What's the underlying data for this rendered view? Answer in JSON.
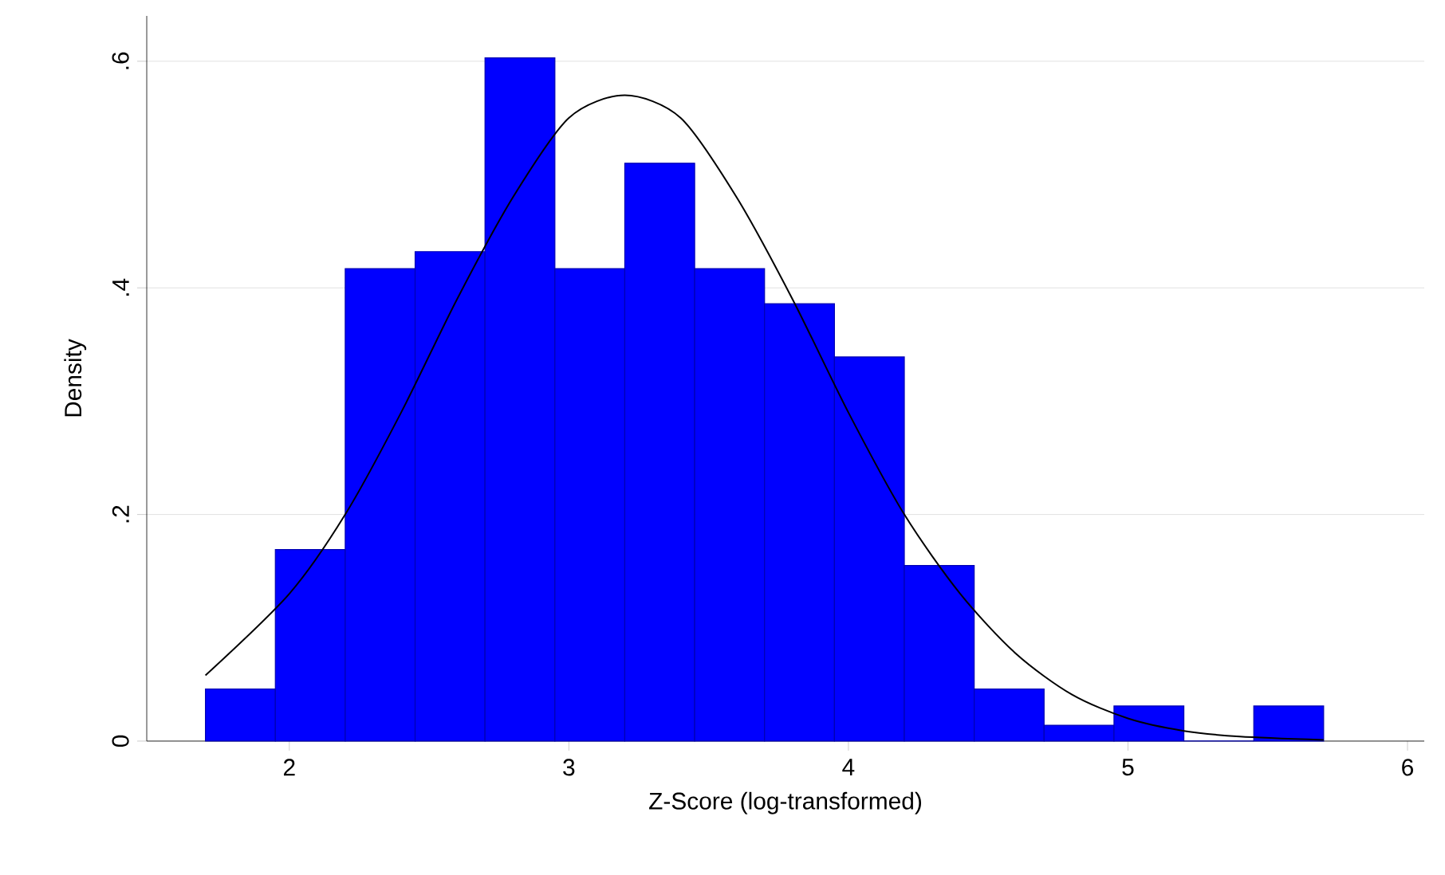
{
  "chart_data": {
    "type": "histogram",
    "xlabel": "Z-Score (log-transformed)",
    "ylabel": "Density",
    "bins": [
      1.7,
      1.95,
      2.2,
      2.45,
      2.7,
      2.95,
      3.2,
      3.45,
      3.7,
      3.95,
      4.2,
      4.45,
      4.7,
      4.95,
      5.2,
      5.45,
      5.7
    ],
    "values": [
      0.046,
      0.169,
      0.417,
      0.432,
      0.603,
      0.417,
      0.51,
      0.417,
      0.386,
      0.339,
      0.155,
      0.046,
      0.014,
      0.031,
      0,
      0.031
    ],
    "color": "#0000ff",
    "series": [
      {
        "type": "line",
        "color": "#000000",
        "x": [
          1.7,
          2.0,
          2.2,
          2.4,
          2.6,
          2.8,
          3.0,
          3.2,
          3.4,
          3.6,
          3.8,
          4.0,
          4.2,
          4.4,
          4.6,
          4.8,
          5.0,
          5.2,
          5.4,
          5.7
        ],
        "values": [
          0.058,
          0.13,
          0.2,
          0.29,
          0.39,
          0.48,
          0.55,
          0.57,
          0.55,
          0.48,
          0.39,
          0.29,
          0.2,
          0.13,
          0.077,
          0.041,
          0.02,
          0.009,
          0.004,
          0.001
        ]
      }
    ],
    "xlim": [
      1.49,
      6.06
    ],
    "ylim": [
      0,
      0.64
    ],
    "xticks": [
      2,
      3,
      4,
      5,
      6
    ],
    "yticks": [
      {
        "value": 0,
        "label": "0"
      },
      {
        "value": 0.2,
        "label": ".2"
      },
      {
        "value": 0.4,
        "label": ".4"
      },
      {
        "value": 0.6,
        "label": ".6"
      }
    ],
    "grid": "y"
  }
}
